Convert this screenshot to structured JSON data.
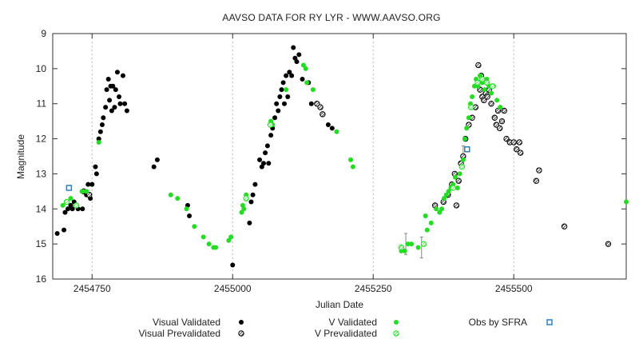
{
  "chart_data": {
    "type": "scatter",
    "title": "AAVSO DATA FOR RY LYR - WWW.AAVSO.ORG",
    "xlabel": "Julian Date",
    "ylabel": "Magnitude",
    "xlim": [
      2454680,
      2455700
    ],
    "ylim": [
      9,
      16
    ],
    "y_inverted": true,
    "x_ticks": [
      2454750,
      2455000,
      2455250,
      2455500
    ],
    "y_ticks": [
      9,
      10,
      11,
      12,
      13,
      14,
      15,
      16
    ],
    "grid": "dashed vertical lines at x ticks",
    "colors": {
      "visual": "#000000",
      "v_band": "#22dd22",
      "sfra": "#2a7fbf"
    },
    "legend": [
      {
        "label": "Visual Validated",
        "marker": "filled-black-circle"
      },
      {
        "label": "Visual Prevalidated",
        "marker": "hatched-black-circle"
      },
      {
        "label": "V Validated",
        "marker": "filled-green-circle"
      },
      {
        "label": "V Prevalidated",
        "marker": "hatched-green-circle"
      },
      {
        "label": "Obs by SFRA",
        "marker": "blue-square"
      }
    ],
    "series": [
      {
        "name": "Visual Validated",
        "points": [
          [
            2454688,
            14.7
          ],
          [
            2454700,
            14.6
          ],
          [
            2454702,
            14.1
          ],
          [
            2454707,
            14.0
          ],
          [
            2454712,
            13.9
          ],
          [
            2454715,
            14.0
          ],
          [
            2454718,
            13.8
          ],
          [
            2454725,
            14.0
          ],
          [
            2454733,
            14.0
          ],
          [
            2454740,
            13.6
          ],
          [
            2454743,
            13.3
          ],
          [
            2454747,
            13.7
          ],
          [
            2454750,
            13.3
          ],
          [
            2454756,
            12.8
          ],
          [
            2454758,
            13.0
          ],
          [
            2454762,
            12.0
          ],
          [
            2454765,
            11.8
          ],
          [
            2454768,
            11.6
          ],
          [
            2454770,
            11.4
          ],
          [
            2454774,
            11.1
          ],
          [
            2454776,
            10.6
          ],
          [
            2454779,
            10.3
          ],
          [
            2454781,
            10.9
          ],
          [
            2454783,
            10.5
          ],
          [
            2454785,
            11.2
          ],
          [
            2454787,
            10.5
          ],
          [
            2454790,
            11.1
          ],
          [
            2454792,
            10.6
          ],
          [
            2454795,
            10.1
          ],
          [
            2454798,
            10.8
          ],
          [
            2454800,
            11.0
          ],
          [
            2454805,
            10.2
          ],
          [
            2454808,
            11.0
          ],
          [
            2454812,
            11.2
          ],
          [
            2454860,
            12.8
          ],
          [
            2454866,
            12.6
          ],
          [
            2454920,
            13.9
          ],
          [
            2454923,
            14.2
          ],
          [
            2455000,
            15.6
          ],
          [
            2455030,
            14.4
          ],
          [
            2455033,
            13.8
          ],
          [
            2455036,
            13.6
          ],
          [
            2455040,
            13.3
          ],
          [
            2455048,
            12.6
          ],
          [
            2455052,
            12.8
          ],
          [
            2455055,
            12.7
          ],
          [
            2455058,
            12.4
          ],
          [
            2455062,
            12.2
          ],
          [
            2455064,
            12.7
          ],
          [
            2455068,
            11.9
          ],
          [
            2455071,
            11.7
          ],
          [
            2455075,
            11.4
          ],
          [
            2455078,
            11.0
          ],
          [
            2455081,
            11.2
          ],
          [
            2455084,
            10.8
          ],
          [
            2455087,
            10.6
          ],
          [
            2455090,
            10.4
          ],
          [
            2455092,
            11.0
          ],
          [
            2455095,
            10.2
          ],
          [
            2455098,
            10.8
          ],
          [
            2455101,
            10.1
          ],
          [
            2455105,
            10.2
          ],
          [
            2455108,
            9.4
          ],
          [
            2455111,
            9.7
          ],
          [
            2455114,
            9.8
          ],
          [
            2455118,
            9.6
          ],
          [
            2455124,
            10.3
          ],
          [
            2455135,
            10.4
          ],
          [
            2455140,
            11.0
          ],
          [
            2455170,
            11.6
          ],
          [
            2455177,
            11.7
          ]
        ]
      },
      {
        "name": "Visual Prevalidated",
        "points": [
          [
            2454735,
            13.5
          ],
          [
            2454745,
            13.6
          ],
          [
            2455150,
            11.0
          ],
          [
            2455156,
            11.1
          ],
          [
            2455160,
            11.3
          ],
          [
            2455360,
            13.9
          ],
          [
            2455375,
            13.8
          ],
          [
            2455383,
            13.6
          ],
          [
            2455390,
            13.3
          ],
          [
            2455395,
            13.0
          ],
          [
            2455398,
            13.9
          ],
          [
            2455402,
            13.2
          ],
          [
            2455406,
            12.7
          ],
          [
            2455410,
            12.5
          ],
          [
            2455414,
            12.0
          ],
          [
            2455420,
            11.6
          ],
          [
            2455426,
            11.4
          ],
          [
            2455432,
            11.1
          ],
          [
            2455437,
            9.9
          ],
          [
            2455440,
            10.6
          ],
          [
            2455442,
            10.2
          ],
          [
            2455444,
            10.8
          ],
          [
            2455447,
            10.9
          ],
          [
            2455450,
            10.7
          ],
          [
            2455453,
            10.8
          ],
          [
            2455456,
            10.6
          ],
          [
            2455460,
            11.0
          ],
          [
            2455466,
            11.4
          ],
          [
            2455469,
            11.6
          ],
          [
            2455472,
            11.2
          ],
          [
            2455475,
            11.7
          ],
          [
            2455479,
            11.5
          ],
          [
            2455483,
            11.2
          ],
          [
            2455487,
            12.0
          ],
          [
            2455493,
            12.1
          ],
          [
            2455500,
            12.1
          ],
          [
            2455505,
            12.3
          ],
          [
            2455510,
            12.1
          ],
          [
            2455512,
            12.4
          ],
          [
            2455540,
            13.2
          ],
          [
            2455545,
            12.9
          ],
          [
            2455590,
            14.5
          ],
          [
            2455668,
            15.0
          ]
        ]
      },
      {
        "name": "V Validated",
        "points": [
          [
            2454698,
            13.9
          ],
          [
            2454712,
            13.7
          ],
          [
            2454732,
            13.5
          ],
          [
            2454740,
            13.5
          ],
          [
            2454762,
            12.1
          ],
          [
            2454890,
            13.6
          ],
          [
            2454902,
            13.7
          ],
          [
            2454918,
            14.0
          ],
          [
            2454932,
            14.5
          ],
          [
            2454948,
            14.8
          ],
          [
            2454958,
            15.0
          ],
          [
            2454966,
            15.1
          ],
          [
            2454970,
            15.1
          ],
          [
            2454993,
            14.9
          ],
          [
            2454997,
            14.8
          ],
          [
            2455016,
            14.1
          ],
          [
            2455018,
            13.9
          ],
          [
            2455020,
            14.0
          ],
          [
            2455024,
            13.6
          ],
          [
            2455068,
            11.5
          ],
          [
            2455071,
            11.6
          ],
          [
            2455095,
            10.6
          ],
          [
            2455126,
            9.9
          ],
          [
            2455130,
            10.0
          ],
          [
            2455132,
            10.4
          ],
          [
            2455143,
            10.6
          ],
          [
            2455185,
            11.8
          ],
          [
            2455210,
            12.6
          ],
          [
            2455214,
            12.8
          ],
          [
            2455300,
            15.2
          ],
          [
            2455306,
            15.2
          ],
          [
            2455312,
            15.0
          ],
          [
            2455318,
            15.0
          ],
          [
            2455330,
            15.1
          ],
          [
            2455343,
            14.2
          ],
          [
            2455346,
            14.6
          ],
          [
            2455353,
            14.4
          ],
          [
            2455362,
            14.0
          ],
          [
            2455368,
            14.1
          ],
          [
            2455372,
            14.0
          ],
          [
            2455376,
            13.7
          ],
          [
            2455380,
            13.6
          ],
          [
            2455384,
            13.5
          ],
          [
            2455388,
            13.4
          ],
          [
            2455392,
            13.3
          ],
          [
            2455396,
            13.1
          ],
          [
            2455400,
            13.4
          ],
          [
            2455404,
            13.0
          ],
          [
            2455410,
            12.6
          ],
          [
            2455413,
            12.0
          ],
          [
            2455416,
            11.7
          ],
          [
            2455420,
            11.4
          ],
          [
            2455423,
            11.0
          ],
          [
            2455426,
            10.8
          ],
          [
            2455430,
            10.5
          ],
          [
            2455433,
            10.3
          ],
          [
            2455436,
            10.5
          ],
          [
            2455440,
            10.2
          ],
          [
            2455444,
            10.4
          ],
          [
            2455448,
            10.6
          ],
          [
            2455452,
            10.3
          ],
          [
            2455456,
            10.5
          ],
          [
            2455460,
            10.7
          ],
          [
            2455464,
            10.5
          ],
          [
            2455470,
            10.9
          ],
          [
            2455476,
            11.1
          ],
          [
            2455700,
            13.8
          ]
        ]
      },
      {
        "name": "V Prevalidated",
        "points": [
          [
            2454705,
            13.8
          ],
          [
            2454722,
            13.9
          ],
          [
            2455024,
            13.7
          ],
          [
            2455067,
            11.6
          ],
          [
            2455300,
            15.1
          ],
          [
            2455340,
            15.0
          ],
          [
            2455392,
            13.4
          ],
          [
            2455408,
            12.8
          ],
          [
            2455424,
            11.1
          ],
          [
            2455436,
            10.4
          ],
          [
            2455444,
            10.3
          ],
          [
            2455452,
            10.4
          ],
          [
            2455462,
            10.5
          ]
        ]
      },
      {
        "name": "Obs by SFRA",
        "points": [
          [
            2454709,
            13.4
          ],
          [
            2455417,
            12.3
          ]
        ]
      }
    ],
    "error_bars": [
      {
        "x": 2455308,
        "y": 15.0,
        "low": 14.7,
        "high": 15.3
      },
      {
        "x": 2455336,
        "y": 15.1,
        "low": 14.8,
        "high": 15.4
      },
      {
        "x": 2455410,
        "y": 12.5,
        "low": 12.2,
        "high": 12.8
      }
    ]
  }
}
